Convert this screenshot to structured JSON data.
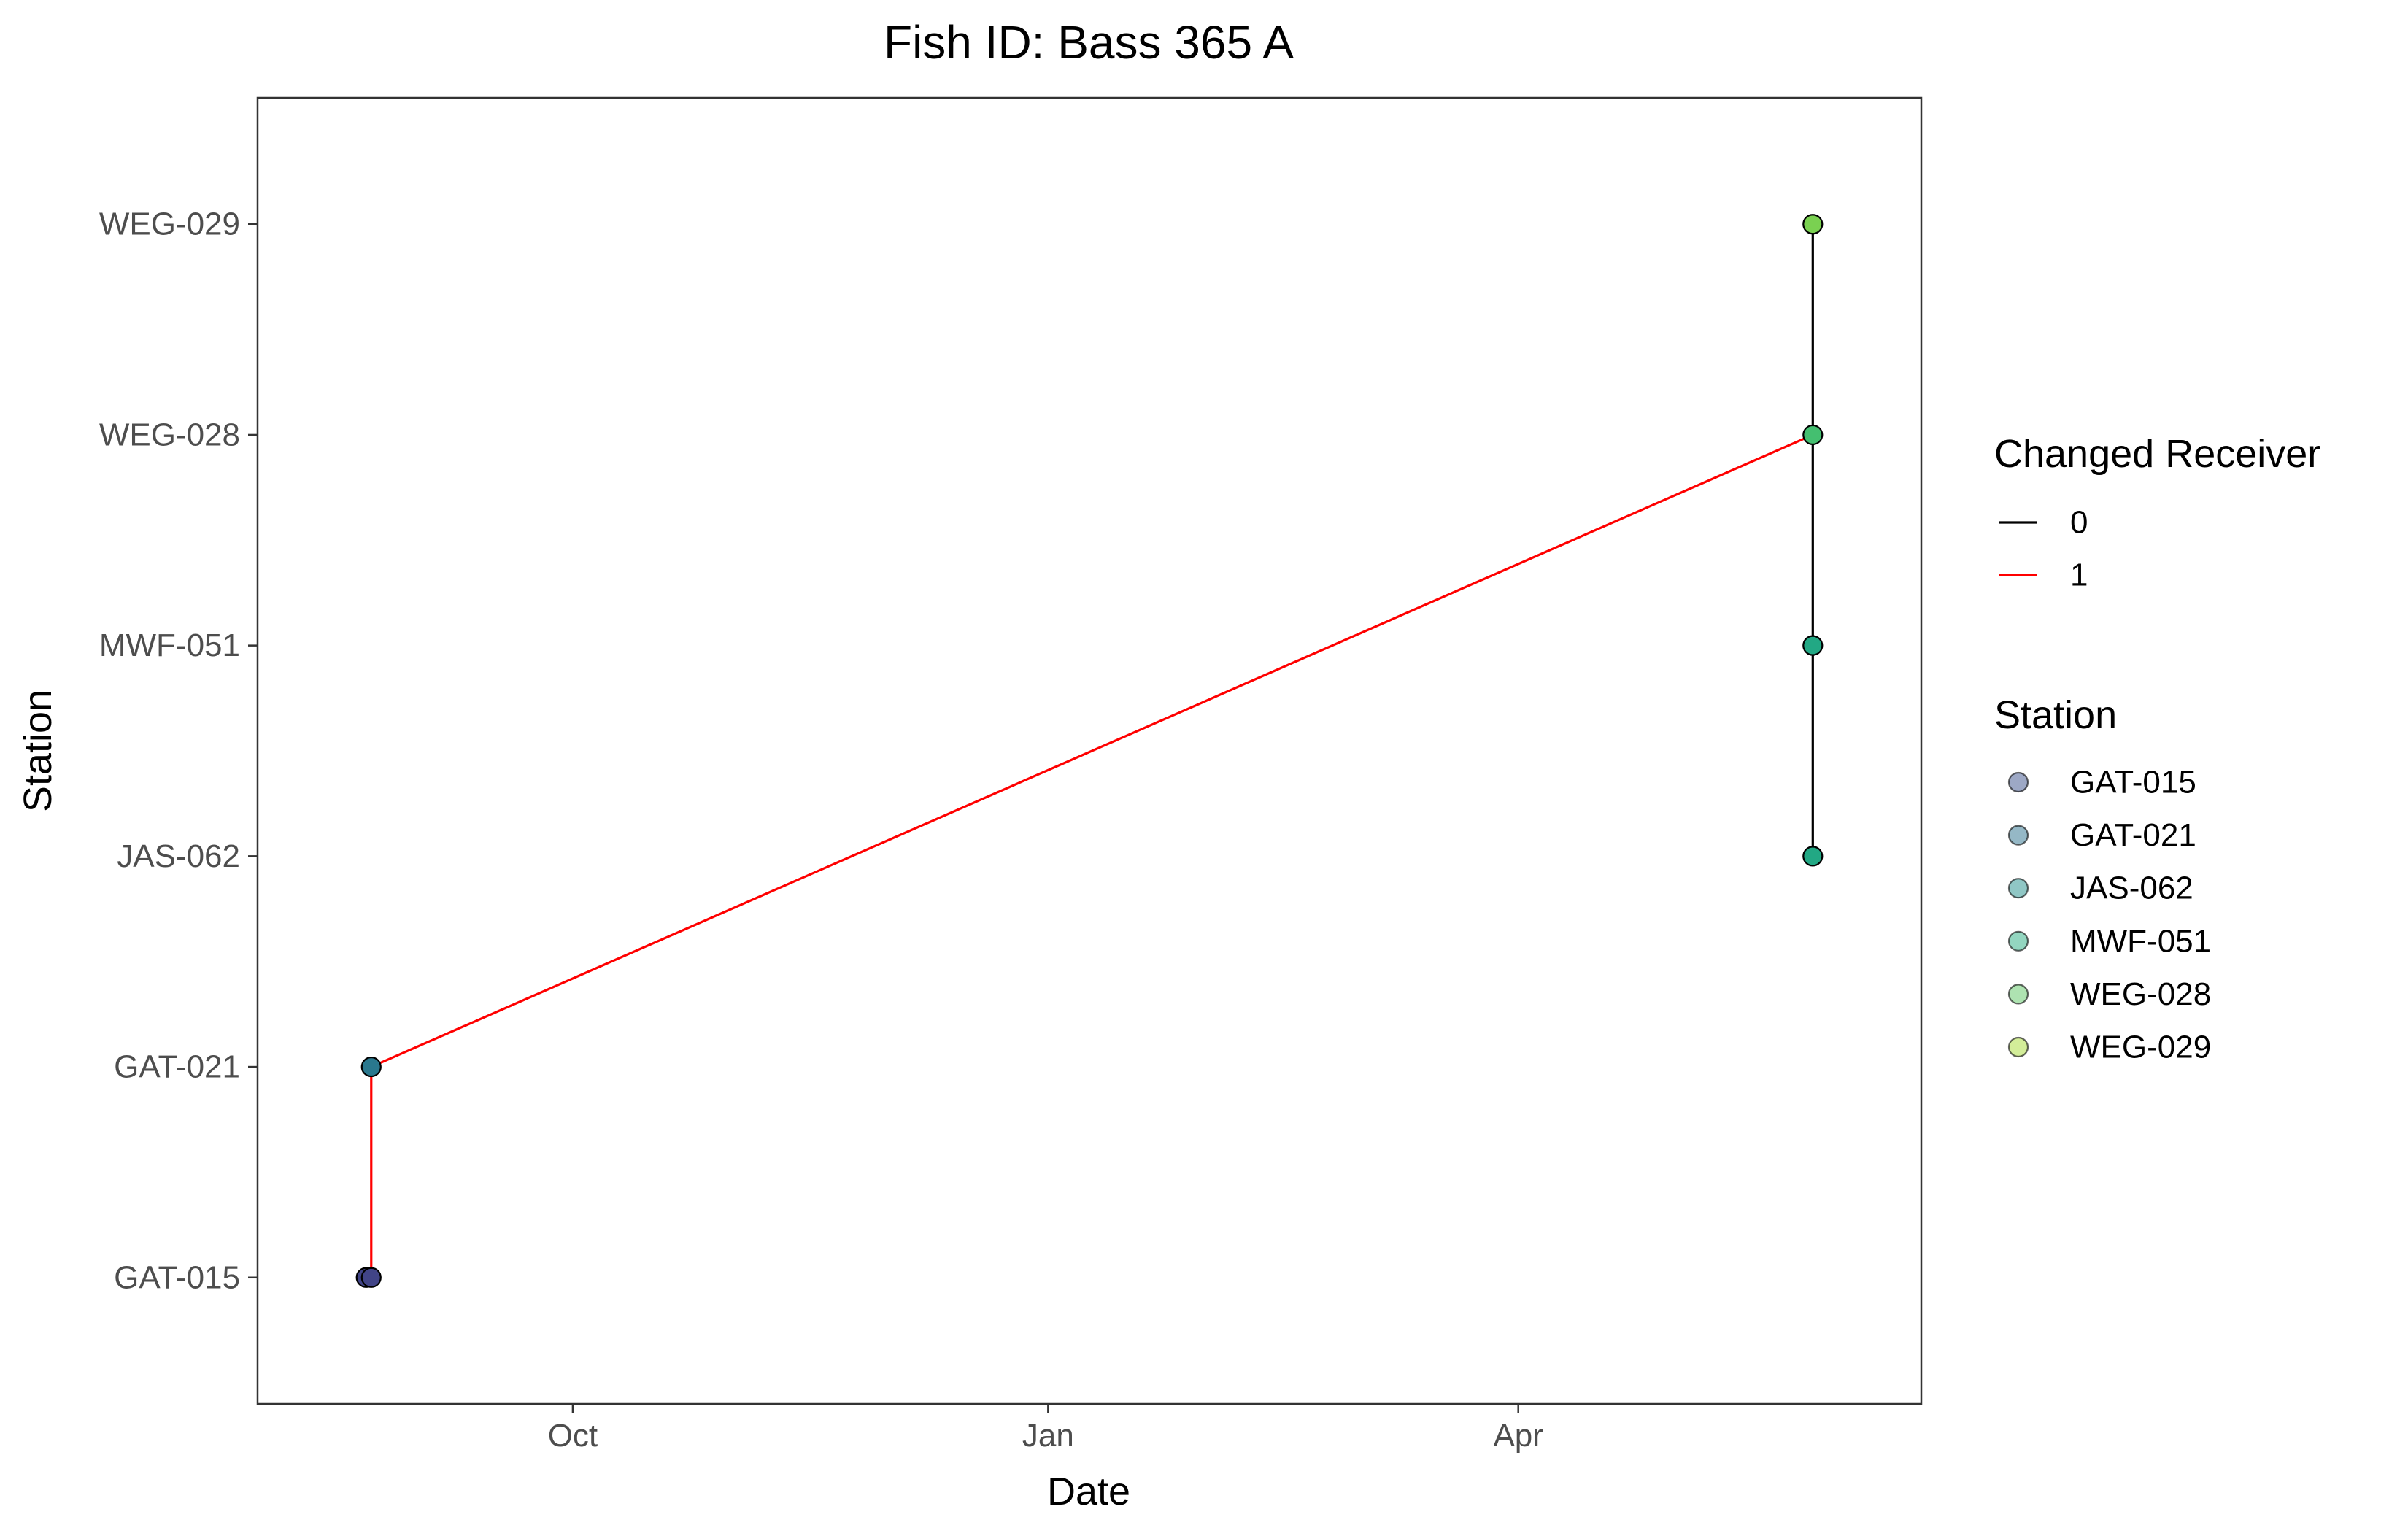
{
  "chart_data": {
    "type": "scatter",
    "title": "Fish ID: Bass 365 A",
    "xlabel": "Date",
    "ylabel": "Station",
    "x_type": "date",
    "xlim": [
      "2019-08-01",
      "2020-06-18"
    ],
    "x_ticks": [
      {
        "date": "2019-10-01",
        "label": "Oct"
      },
      {
        "date": "2020-01-01",
        "label": "Jan"
      },
      {
        "date": "2020-04-01",
        "label": "Apr"
      }
    ],
    "categories": [
      "GAT-015",
      "GAT-021",
      "JAS-062",
      "MWF-051",
      "WEG-028",
      "WEG-029"
    ],
    "grid": false,
    "segments": [
      {
        "from": {
          "x": "2019-08-23",
          "y": "GAT-015"
        },
        "to": {
          "x": "2019-08-23",
          "y": "GAT-021"
        },
        "changed": "1"
      },
      {
        "from": {
          "x": "2019-08-23",
          "y": "GAT-021"
        },
        "to": {
          "x": "2020-05-28",
          "y": "WEG-028"
        },
        "changed": "1"
      },
      {
        "from": {
          "x": "2020-05-28",
          "y": "JAS-062"
        },
        "to": {
          "x": "2020-05-28",
          "y": "MWF-051"
        },
        "changed": "0"
      },
      {
        "from": {
          "x": "2020-05-28",
          "y": "MWF-051"
        },
        "to": {
          "x": "2020-05-28",
          "y": "WEG-028"
        },
        "changed": "0"
      },
      {
        "from": {
          "x": "2020-05-28",
          "y": "WEG-028"
        },
        "to": {
          "x": "2020-05-28",
          "y": "WEG-029"
        },
        "changed": "0"
      }
    ],
    "points": [
      {
        "x": "2019-08-22",
        "y": "GAT-015"
      },
      {
        "x": "2019-08-23",
        "y": "GAT-015"
      },
      {
        "x": "2019-08-23",
        "y": "GAT-021"
      },
      {
        "x": "2020-05-28",
        "y": "JAS-062"
      },
      {
        "x": "2020-05-28",
        "y": "MWF-051"
      },
      {
        "x": "2020-05-28",
        "y": "WEG-028"
      },
      {
        "x": "2020-05-28",
        "y": "WEG-029"
      }
    ],
    "legend_placement": "right",
    "legends": [
      {
        "title": "Changed Receiver",
        "entries": [
          {
            "label": "0",
            "color": "#000000"
          },
          {
            "label": "1",
            "color": "#ff0000"
          }
        ]
      },
      {
        "title": "Station",
        "entries": [
          {
            "label": "GAT-015",
            "color": "#3b528b"
          },
          {
            "label": "GAT-021",
            "color": "#2c728e"
          },
          {
            "label": "JAS-062",
            "color": "#21908c"
          },
          {
            "label": "MWF-051",
            "color": "#27ad81"
          },
          {
            "label": "WEG-028",
            "color": "#5dc863"
          },
          {
            "label": "WEG-029",
            "color": "#a8db34"
          }
        ]
      }
    ],
    "point_colors": {
      "GAT-015": "#414487",
      "GAT-021": "#2a788e",
      "JAS-062": "#22a884",
      "MWF-051": "#22a884",
      "WEG-028": "#44bf70",
      "WEG-029": "#7ad151"
    }
  }
}
